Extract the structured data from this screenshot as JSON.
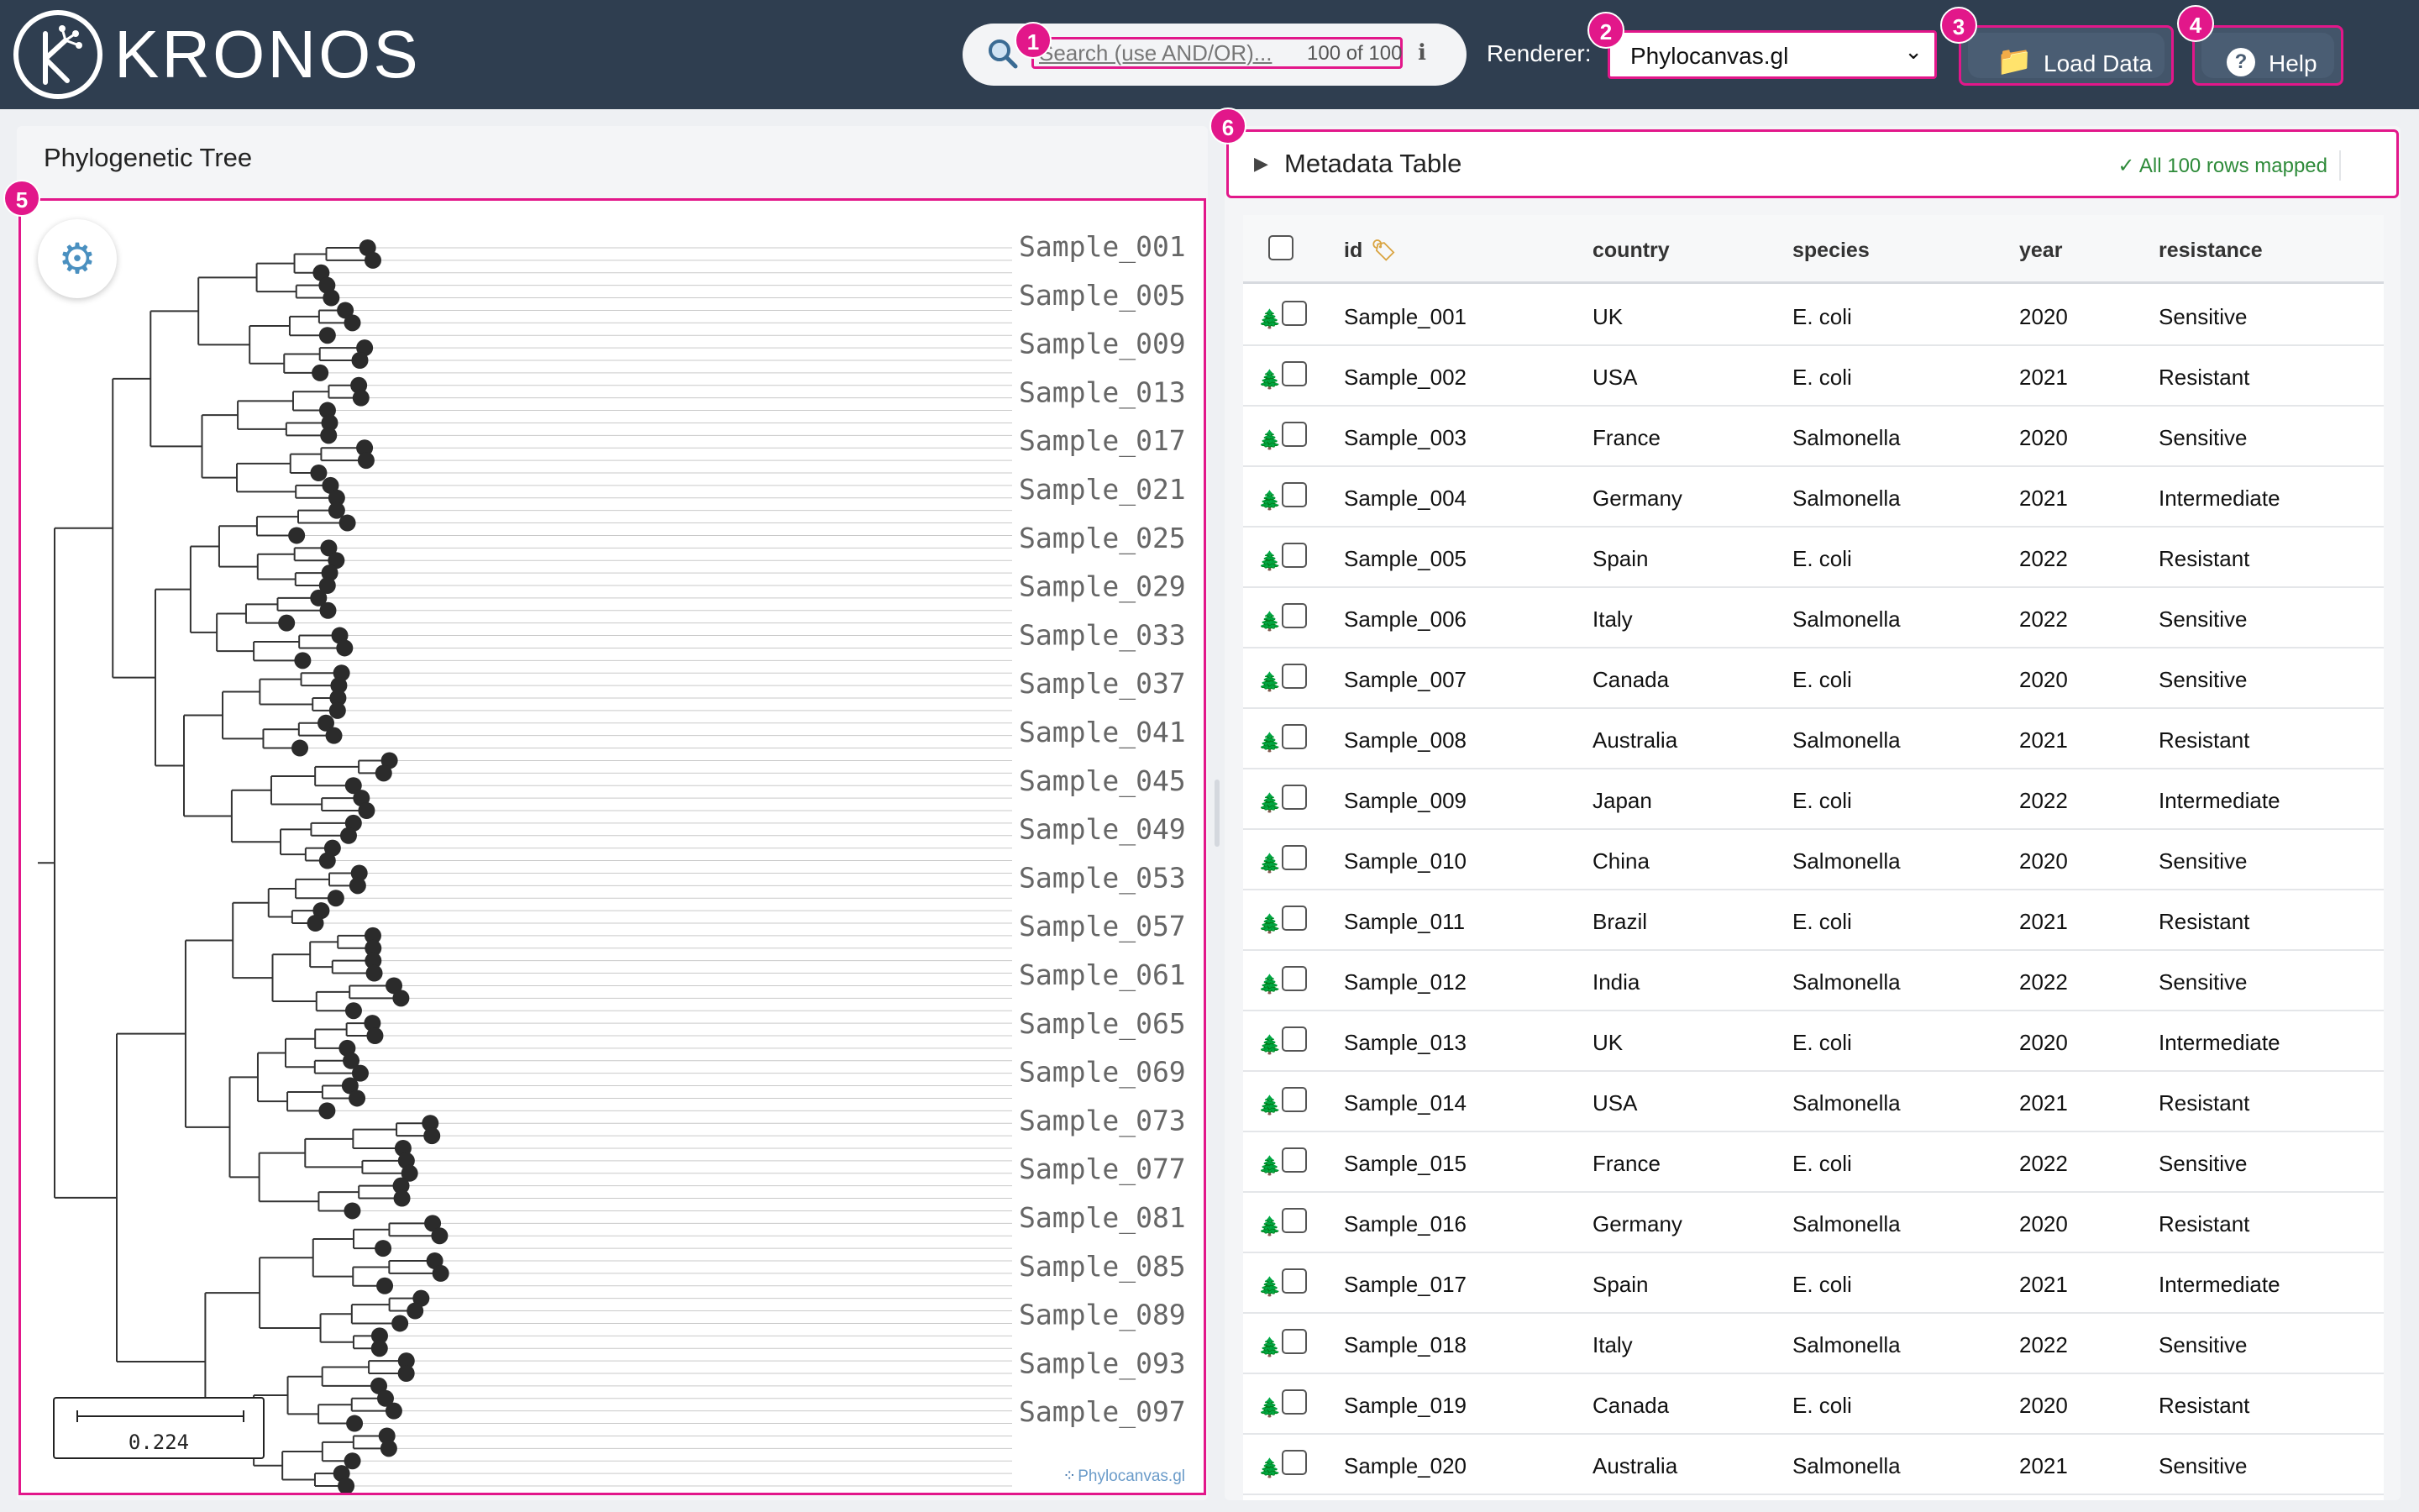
{
  "app": {
    "title": "KRONOS"
  },
  "search": {
    "placeholder": "Search (use AND/OR)...",
    "count": "100 of 100"
  },
  "renderer": {
    "label": "Renderer:",
    "value": "Phylocanvas.gl"
  },
  "toolbar": {
    "load_label": "Load Data",
    "help_label": "Help"
  },
  "badges": [
    "1",
    "2",
    "3",
    "4",
    "5",
    "6"
  ],
  "tree_panel": {
    "title": "Phylogenetic Tree",
    "scale_value": "0.224",
    "watermark": "Phylocanvas.gl",
    "labels": [
      "Sample_001",
      "Sample_005",
      "Sample_009",
      "Sample_013",
      "Sample_017",
      "Sample_021",
      "Sample_025",
      "Sample_029",
      "Sample_033",
      "Sample_037",
      "Sample_041",
      "Sample_045",
      "Sample_049",
      "Sample_053",
      "Sample_057",
      "Sample_061",
      "Sample_065",
      "Sample_069",
      "Sample_073",
      "Sample_077",
      "Sample_081",
      "Sample_085",
      "Sample_089",
      "Sample_093",
      "Sample_097"
    ]
  },
  "metadata": {
    "title": "Metadata Table",
    "mapped_status": "✓ All 100 rows mapped",
    "columns": [
      "id",
      "country",
      "species",
      "year",
      "resistance"
    ],
    "rows": [
      [
        "Sample_001",
        "UK",
        "E. coli",
        "2020",
        "Sensitive"
      ],
      [
        "Sample_002",
        "USA",
        "E. coli",
        "2021",
        "Resistant"
      ],
      [
        "Sample_003",
        "France",
        "Salmonella",
        "2020",
        "Sensitive"
      ],
      [
        "Sample_004",
        "Germany",
        "Salmonella",
        "2021",
        "Intermediate"
      ],
      [
        "Sample_005",
        "Spain",
        "E. coli",
        "2022",
        "Resistant"
      ],
      [
        "Sample_006",
        "Italy",
        "Salmonella",
        "2022",
        "Sensitive"
      ],
      [
        "Sample_007",
        "Canada",
        "E. coli",
        "2020",
        "Sensitive"
      ],
      [
        "Sample_008",
        "Australia",
        "Salmonella",
        "2021",
        "Resistant"
      ],
      [
        "Sample_009",
        "Japan",
        "E. coli",
        "2022",
        "Intermediate"
      ],
      [
        "Sample_010",
        "China",
        "Salmonella",
        "2020",
        "Sensitive"
      ],
      [
        "Sample_011",
        "Brazil",
        "E. coli",
        "2021",
        "Resistant"
      ],
      [
        "Sample_012",
        "India",
        "Salmonella",
        "2022",
        "Sensitive"
      ],
      [
        "Sample_013",
        "UK",
        "E. coli",
        "2020",
        "Intermediate"
      ],
      [
        "Sample_014",
        "USA",
        "Salmonella",
        "2021",
        "Resistant"
      ],
      [
        "Sample_015",
        "France",
        "E. coli",
        "2022",
        "Sensitive"
      ],
      [
        "Sample_016",
        "Germany",
        "Salmonella",
        "2020",
        "Resistant"
      ],
      [
        "Sample_017",
        "Spain",
        "E. coli",
        "2021",
        "Intermediate"
      ],
      [
        "Sample_018",
        "Italy",
        "Salmonella",
        "2022",
        "Sensitive"
      ],
      [
        "Sample_019",
        "Canada",
        "E. coli",
        "2020",
        "Resistant"
      ],
      [
        "Sample_020",
        "Australia",
        "Salmonella",
        "2021",
        "Sensitive"
      ]
    ]
  }
}
